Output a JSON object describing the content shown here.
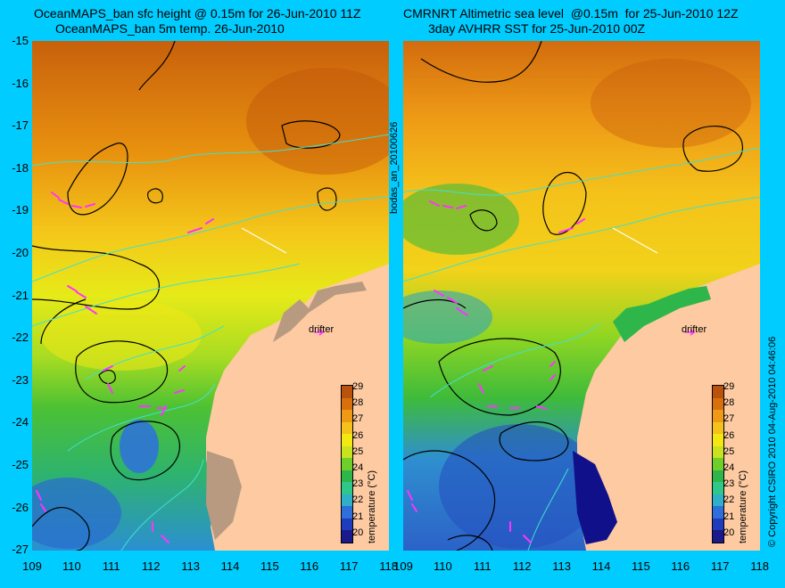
{
  "titles": {
    "left_line1": "OceanMAPS_ban sfc height @ 0.15m for 26-Jun-2010 11Z",
    "left_line2": "OceanMAPS_ban 5m temp. 26-Jun-2010",
    "right_line1": "CMRNRT Altimetric sea level  @0.15m  for 25-Jun-2010 12Z",
    "right_line2": "3day AVHRR SST for 25-Jun-2010 00Z"
  },
  "side_label": "bodas_an_20100626",
  "copyright": "© Copyright CSIRO 2010  04-Aug-2010 04:46:06",
  "y_ticks": [
    "-15",
    "-16",
    "-17",
    "-18",
    "-19",
    "-20",
    "-21",
    "-22",
    "-23",
    "-24",
    "-25",
    "-26",
    "-27"
  ],
  "x_ticks": [
    "109",
    "110",
    "111",
    "112",
    "113",
    "114",
    "115",
    "116",
    "117",
    "118"
  ],
  "colorbar": {
    "label": "temperature (°C)",
    "ticks": [
      "29",
      "28",
      "27",
      "26",
      "25",
      "24",
      "23",
      "22",
      "21",
      "20"
    ],
    "colors": [
      "#1a1a8c",
      "#1f3cbf",
      "#2e6fd9",
      "#2fb0c8",
      "#2ec98a",
      "#2fb64a",
      "#6fcf2a",
      "#c9e21f",
      "#f3e812",
      "#f4c21a",
      "#ee9a16",
      "#d9700e",
      "#b8520c"
    ]
  },
  "drifter_label": "drifter",
  "colors": {
    "background": "#00ccff",
    "land": "#fdcaa2",
    "arrow": "#ff33ff",
    "contour_ssh": "#000000",
    "isobath": "#40e0d0"
  }
}
